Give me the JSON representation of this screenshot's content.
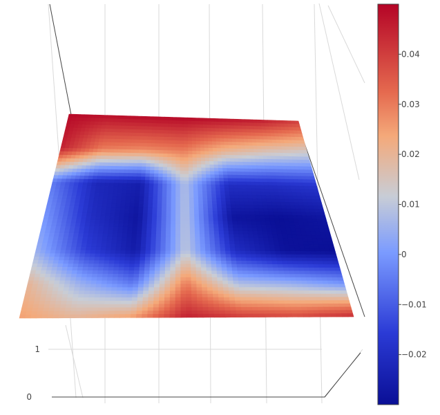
{
  "chart_data": {
    "type": "heatmap",
    "subtype": "3d-surface",
    "title": "",
    "colorscale": "coolwarm",
    "colors": {
      "low": "#0a12a8",
      "mid_low": "#7b9bff",
      "mid": "#c8cdd6",
      "mid_high": "#f4a97a",
      "high": "#b81c26",
      "grid": "#d9d9d9",
      "axis": "#444444"
    },
    "colorbar": {
      "range": [
        -0.03,
        0.05
      ],
      "ticks": [
        {
          "value": 0.04,
          "label": "0.04"
        },
        {
          "value": 0.03,
          "label": "0.03"
        },
        {
          "value": 0.02,
          "label": "0.02"
        },
        {
          "value": 0.01,
          "label": "0.01"
        },
        {
          "value": 0,
          "label": "0"
        },
        {
          "value": -0.01,
          "label": "−0.01"
        },
        {
          "value": -0.02,
          "label": "−0.02"
        }
      ]
    },
    "axes": {
      "z_ticks": [
        {
          "value": 1,
          "label": "1"
        },
        {
          "value": 0,
          "label": "0"
        }
      ]
    },
    "surface": {
      "z": [
        [
          0.049,
          0.048,
          0.049,
          0.049,
          0.048,
          0.046,
          0.04
        ],
        [
          0.045,
          0.03,
          0.028,
          0.03,
          0.02,
          0.015,
          0.012
        ],
        [
          -0.005,
          -0.022,
          -0.025,
          0.008,
          -0.02,
          -0.02,
          -0.018
        ],
        [
          0.0,
          -0.02,
          -0.028,
          0.009,
          -0.028,
          -0.03,
          -0.028
        ],
        [
          0.005,
          -0.015,
          -0.026,
          0.01,
          -0.02,
          -0.029,
          -0.03
        ],
        [
          0.02,
          0.005,
          -0.005,
          0.03,
          0.008,
          0.005,
          0.0
        ],
        [
          0.025,
          0.02,
          0.025,
          0.045,
          0.04,
          0.038,
          0.043
        ]
      ]
    }
  }
}
